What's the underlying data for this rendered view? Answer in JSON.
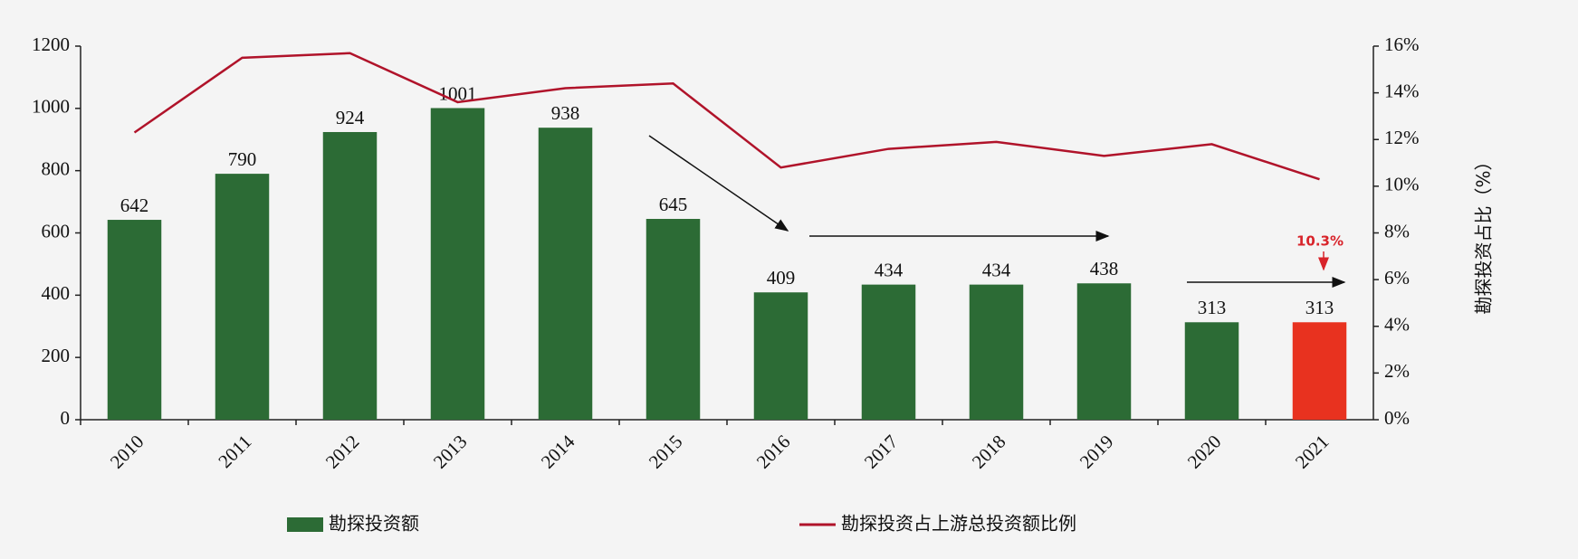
{
  "chart_data": {
    "type": "bar-line",
    "categories": [
      "2010",
      "2011",
      "2012",
      "2013",
      "2014",
      "2015",
      "2016",
      "2017",
      "2018",
      "2019",
      "2020",
      "2021"
    ],
    "series": [
      {
        "name": "勘探投资额",
        "type": "bar",
        "color": "#2c6b35",
        "colors": [
          "#2c6b35",
          "#2c6b35",
          "#2c6b35",
          "#2c6b35",
          "#2c6b35",
          "#2c6b35",
          "#2c6b35",
          "#2c6b35",
          "#2c6b35",
          "#2c6b35",
          "#2c6b35",
          "#e8321f"
        ],
        "values": [
          642,
          790,
          924,
          1001,
          938,
          645,
          409,
          434,
          434,
          438,
          313,
          313
        ]
      },
      {
        "name": "勘探投资占上游总投资额比例",
        "type": "line",
        "color": "#b0132a",
        "axis": "y2",
        "values": [
          12.3,
          15.5,
          15.7,
          13.6,
          14.2,
          14.4,
          10.8,
          11.6,
          11.9,
          11.3,
          11.8,
          10.3
        ]
      }
    ],
    "ylim": [
      0,
      1200
    ],
    "yticks": [
      0,
      200,
      400,
      600,
      800,
      1000,
      1200
    ],
    "y2lim": [
      0,
      16
    ],
    "y2ticks": [
      {
        "value": 0,
        "label": "0%"
      },
      {
        "value": 2,
        "label": "2%"
      },
      {
        "value": 4,
        "label": "4%"
      },
      {
        "value": 6,
        "label": "6%"
      },
      {
        "value": 8,
        "label": "8%"
      },
      {
        "value": 10,
        "label": "10%"
      },
      {
        "value": 12,
        "label": "12%"
      },
      {
        "value": 14,
        "label": "14%"
      },
      {
        "value": 16,
        "label": "16%"
      }
    ],
    "y2label": "勘探投资占比（%）",
    "annotation": "10.3%",
    "grid": false
  }
}
